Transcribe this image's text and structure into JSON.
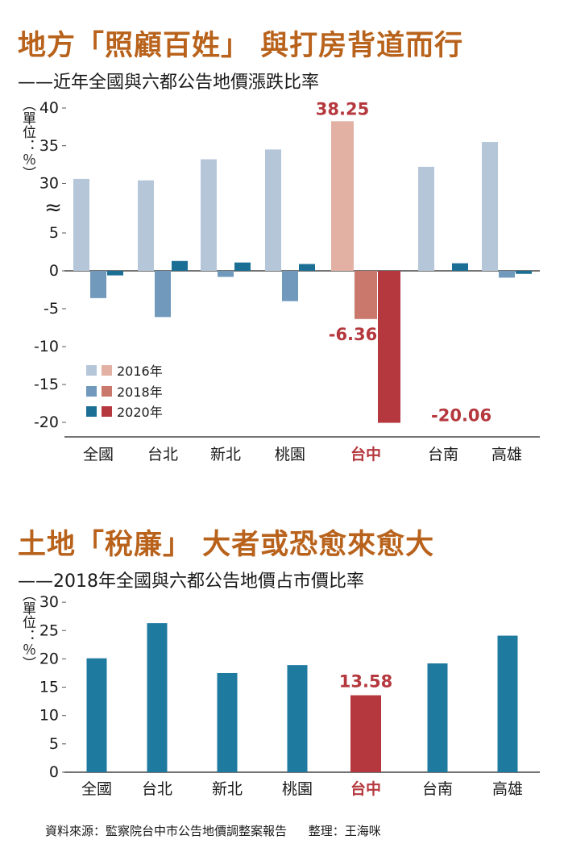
{
  "chart_data": [
    {
      "type": "bar",
      "title": "地方「照顧百姓」 與打房背道而行",
      "subtitle": "——近年全國與六都公告地價漲跌比率",
      "ylabel": "（單位：％）",
      "categories": [
        "全國",
        "台北",
        "新北",
        "桃園",
        "台中",
        "台南",
        "高雄"
      ],
      "highlight_category": "台中",
      "series": [
        {
          "name": "2016年",
          "values": [
            30.6,
            30.4,
            33.2,
            34.5,
            38.25,
            32.2,
            35.5
          ]
        },
        {
          "name": "2018年",
          "values": [
            -3.6,
            -6.1,
            -0.8,
            -4.0,
            -6.36,
            0.0,
            -0.9
          ]
        },
        {
          "name": "2020年",
          "values": [
            -0.6,
            1.3,
            1.1,
            0.9,
            -20.06,
            1.0,
            -0.4
          ]
        }
      ],
      "yticks": [
        "40",
        "35",
        "30",
        "5",
        "0",
        "-5",
        "-10",
        "-15",
        "-20"
      ],
      "axis_break": "≈",
      "data_labels": [
        {
          "category": "台中",
          "series": "2016年",
          "text": "38.25"
        },
        {
          "category": "台中",
          "series": "2018年",
          "text": "-6.36"
        },
        {
          "category": "台中",
          "series": "2020年",
          "text": "-20.06"
        }
      ],
      "legend": [
        "2016年",
        "2018年",
        "2020年"
      ],
      "legend_position": "bottom-left"
    },
    {
      "type": "bar",
      "title": "土地「稅廉」 大者或恐愈來愈大",
      "subtitle": "——2018年全國與六都公告地價占市價比率",
      "ylabel": "（單位：％）",
      "categories": [
        "全國",
        "台北",
        "新北",
        "桃園",
        "台中",
        "台南",
        "高雄"
      ],
      "highlight_category": "台中",
      "values": [
        20.1,
        26.3,
        17.5,
        18.9,
        13.58,
        19.2,
        24.1
      ],
      "yticks": [
        "30",
        "25",
        "20",
        "15",
        "10",
        "5",
        "0"
      ],
      "ylim": [
        0,
        30
      ],
      "data_labels": [
        {
          "category": "台中",
          "text": "13.58"
        }
      ]
    }
  ],
  "colors": {
    "title": "#b8621b",
    "normal": [
      "#b5c6d9",
      "#7099bc",
      "#1b6f95"
    ],
    "highlight": [
      "#e2b1a4",
      "#c9786b",
      "#b4383e"
    ],
    "bar2": "#1f7aa0",
    "bar2_highlight": "#b4383e",
    "label_red": "#b4383e"
  },
  "footer": {
    "source": "資料來源：監察院台中市公告地價調整案報告",
    "editor": "整理：王海咪"
  }
}
